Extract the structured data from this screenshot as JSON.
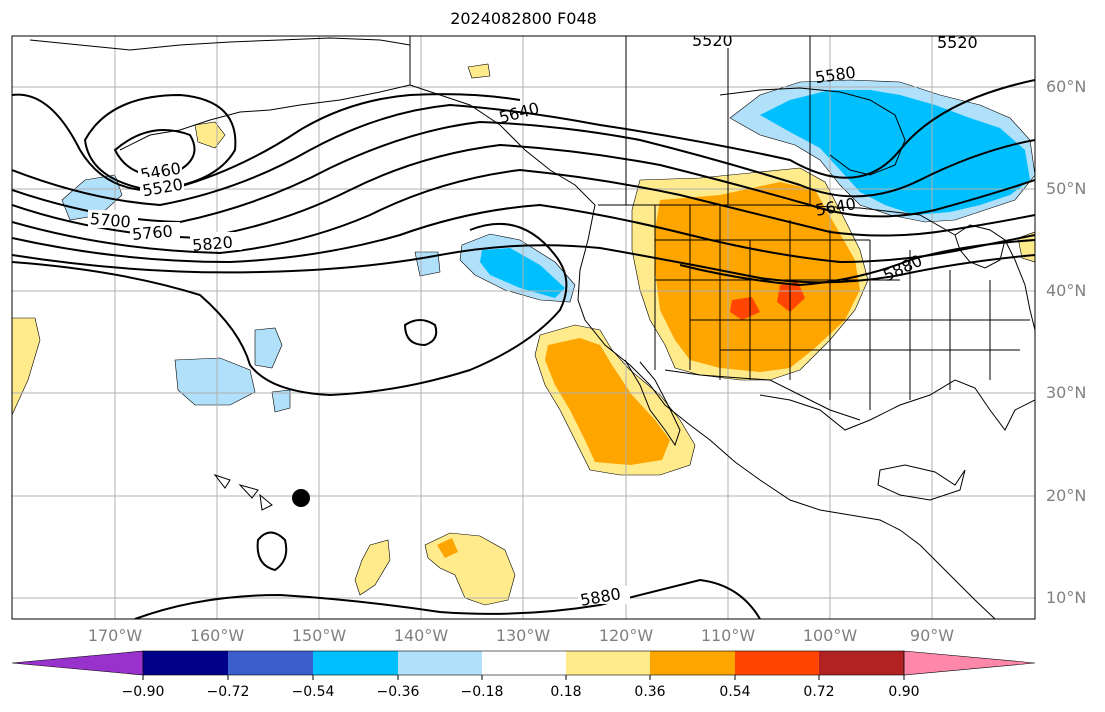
{
  "title": "2024082800 F048",
  "lat_labels": [
    "60°N",
    "50°N",
    "40°N",
    "30°N",
    "20°N",
    "10°N"
  ],
  "lon_labels": [
    "170°W",
    "160°W",
    "150°W",
    "140°W",
    "130°W",
    "120°W",
    "110°W",
    "100°W",
    "90°W"
  ],
  "contour_labels": [
    "5460",
    "5520",
    "5580",
    "5640",
    "5700",
    "5760",
    "5820",
    "5880"
  ],
  "colorbar": {
    "tick_labels": [
      "−0.90",
      "−0.72",
      "−0.54",
      "−0.36",
      "−0.18",
      "0.18",
      "0.36",
      "0.54",
      "0.72",
      "0.90"
    ],
    "colors": [
      "#9932cc",
      "#00008b",
      "#3a5fcd",
      "#00bfff",
      "#b0e0fa",
      "#ffffff",
      "#ffea8c",
      "#ffa500",
      "#ff4500",
      "#b22222",
      "#ff88aa"
    ]
  },
  "colors": {
    "contour": "#000000",
    "grid": "#b0b0b0",
    "coast": "#000000",
    "axis_label": "#808080"
  }
}
